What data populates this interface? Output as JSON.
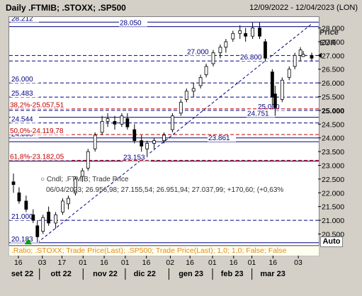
{
  "header": {
    "title": "Daily .FTMIB; .STOXX; .SP500",
    "date_range": "12/09/2022 - 12/04/2023 (LON)"
  },
  "axis_unit": {
    "line1": "Price",
    "line2": "EUR"
  },
  "legend_footer": ".Ratio; .STOXX; Trade Price(Last); .SP500; Trade Price(Last); 1,0; 1,0; False; False",
  "auto_button": "Auto",
  "info_box": {
    "line1": "Cndl; .FTMIB; Trade Price",
    "line2": "06/04/2023; 26.956,98; 27.155,54; 26.951,94; 27.037,99; +170,60; (+0,63%"
  },
  "colors": {
    "candle": "#000000",
    "level_line": "#000080",
    "fib_line": "#c00000",
    "legend_text": "#e38a1c",
    "trend_line": "#000080"
  },
  "chart_data": {
    "type": "candlestick",
    "x_dates": [
      "2022-09-12",
      "2023-04-12"
    ],
    "ylim": [
      20.1,
      28.4
    ],
    "y_ticks": [
      "28.000",
      "27.500",
      "27.000",
      "26.500",
      "26.000",
      "25.500",
      "25.000",
      "24.500",
      "24.000",
      "23.500",
      "23.000",
      "22.500",
      "22.000",
      "21.500",
      "21.000",
      "20.500"
    ],
    "x_day_ticks": [
      "16",
      "03",
      "17",
      "01",
      "16",
      "01",
      "16",
      "02",
      "16",
      "01",
      "16",
      "01",
      "16",
      "03"
    ],
    "x_month_labels": [
      "set 22",
      "ott 22",
      "nov 22",
      "dic 22",
      "gen 23",
      "feb 23",
      "mar 23"
    ],
    "last_price_label": "27.000",
    "highlight_label": "25.000",
    "horizontal_levels": [
      {
        "value": 28.212,
        "label": "28.212",
        "style": "solid"
      },
      {
        "value": 28.05,
        "label": "28.050",
        "style": "solid"
      },
      {
        "value": 27.0,
        "label": "27.000",
        "style": "dashed"
      },
      {
        "value": 26.8,
        "label": "26.800",
        "style": "dashed"
      },
      {
        "value": 26.0,
        "label": "26.000",
        "style": "dashed"
      },
      {
        "value": 25.483,
        "label": "25.483",
        "style": "dashed"
      },
      {
        "value": 25.0,
        "label": "25.000",
        "style": "dashed"
      },
      {
        "value": 24.751,
        "label": "24.751",
        "style": "solid"
      },
      {
        "value": 24.544,
        "label": "24.544",
        "style": "dashed"
      },
      {
        "value": 24.0,
        "label": "24.000",
        "style": "solid"
      },
      {
        "value": 23.861,
        "label": "23.861",
        "style": "solid"
      },
      {
        "value": 23.153,
        "label": "23.153",
        "style": "solid"
      },
      {
        "value": 21.0,
        "label": "21.000",
        "style": "dashed"
      },
      {
        "value": 20.183,
        "label": "20.183",
        "style": "solid"
      }
    ],
    "fibonacci_levels": [
      {
        "value": 25.057,
        "label": "38,2%-25.057,51"
      },
      {
        "value": 24.12,
        "label": "50,0%-24.119,78"
      },
      {
        "value": 23.182,
        "label": "61,8%-23.182,05"
      }
    ],
    "trend_line": {
      "x1": "2022-09-29",
      "y1": 20.183,
      "x2": "2023-04-12",
      "y2": 28.15
    },
    "close_series": [
      {
        "date": "2022-09-12",
        "open": 22.4,
        "high": 22.7,
        "low": 22.0,
        "close": 22.3
      },
      {
        "date": "2022-09-16",
        "open": 22.0,
        "high": 22.2,
        "low": 21.6,
        "close": 21.7
      },
      {
        "date": "2022-09-21",
        "open": 21.7,
        "high": 21.9,
        "low": 21.3,
        "close": 21.4
      },
      {
        "date": "2022-09-26",
        "open": 21.2,
        "high": 21.4,
        "low": 20.9,
        "close": 21.0
      },
      {
        "date": "2022-09-29",
        "open": 20.8,
        "high": 21.0,
        "low": 20.2,
        "close": 20.4
      },
      {
        "date": "2022-10-03",
        "open": 20.6,
        "high": 21.2,
        "low": 20.5,
        "close": 21.1
      },
      {
        "date": "2022-10-07",
        "open": 21.3,
        "high": 21.5,
        "low": 20.8,
        "close": 20.9
      },
      {
        "date": "2022-10-12",
        "open": 20.9,
        "high": 21.3,
        "low": 20.7,
        "close": 21.2
      },
      {
        "date": "2022-10-17",
        "open": 21.3,
        "high": 21.8,
        "low": 21.2,
        "close": 21.7
      },
      {
        "date": "2022-10-21",
        "open": 21.6,
        "high": 21.9,
        "low": 21.4,
        "close": 21.8
      },
      {
        "date": "2022-10-26",
        "open": 22.0,
        "high": 22.6,
        "low": 21.9,
        "close": 22.5
      },
      {
        "date": "2022-10-31",
        "open": 22.6,
        "high": 22.9,
        "low": 22.4,
        "close": 22.8
      },
      {
        "date": "2022-11-04",
        "open": 22.9,
        "high": 23.6,
        "low": 22.8,
        "close": 23.5
      },
      {
        "date": "2022-11-09",
        "open": 23.6,
        "high": 24.2,
        "low": 23.5,
        "close": 24.1
      },
      {
        "date": "2022-11-14",
        "open": 24.2,
        "high": 24.8,
        "low": 24.1,
        "close": 24.6
      },
      {
        "date": "2022-11-18",
        "open": 24.6,
        "high": 24.9,
        "low": 24.4,
        "close": 24.7
      },
      {
        "date": "2022-11-23",
        "open": 24.6,
        "high": 24.8,
        "low": 24.3,
        "close": 24.5
      },
      {
        "date": "2022-11-28",
        "open": 24.5,
        "high": 24.9,
        "low": 24.4,
        "close": 24.8
      },
      {
        "date": "2022-12-02",
        "open": 24.7,
        "high": 24.9,
        "low": 24.3,
        "close": 24.4
      },
      {
        "date": "2022-12-07",
        "open": 24.3,
        "high": 24.5,
        "low": 23.8,
        "close": 23.9
      },
      {
        "date": "2022-12-12",
        "open": 23.9,
        "high": 24.1,
        "low": 23.5,
        "close": 23.7
      },
      {
        "date": "2022-12-16",
        "open": 23.6,
        "high": 23.9,
        "low": 23.3,
        "close": 23.8
      },
      {
        "date": "2022-12-21",
        "open": 23.8,
        "high": 24.0,
        "low": 23.6,
        "close": 23.9
      },
      {
        "date": "2022-12-28",
        "open": 23.9,
        "high": 24.2,
        "low": 23.8,
        "close": 24.1
      },
      {
        "date": "2023-01-03",
        "open": 24.3,
        "high": 24.9,
        "low": 24.2,
        "close": 24.8
      },
      {
        "date": "2023-01-09",
        "open": 24.9,
        "high": 25.4,
        "low": 24.8,
        "close": 25.3
      },
      {
        "date": "2023-01-13",
        "open": 25.4,
        "high": 25.8,
        "low": 25.3,
        "close": 25.7
      },
      {
        "date": "2023-01-18",
        "open": 25.7,
        "high": 26.0,
        "low": 25.5,
        "close": 25.8
      },
      {
        "date": "2023-01-23",
        "open": 25.9,
        "high": 26.3,
        "low": 25.8,
        "close": 26.2
      },
      {
        "date": "2023-01-27",
        "open": 26.3,
        "high": 26.7,
        "low": 26.2,
        "close": 26.6
      },
      {
        "date": "2023-02-01",
        "open": 26.7,
        "high": 27.2,
        "low": 26.6,
        "close": 27.1
      },
      {
        "date": "2023-02-06",
        "open": 27.1,
        "high": 27.4,
        "low": 26.9,
        "close": 27.3
      },
      {
        "date": "2023-02-10",
        "open": 27.3,
        "high": 27.6,
        "low": 27.1,
        "close": 27.5
      },
      {
        "date": "2023-02-15",
        "open": 27.6,
        "high": 27.9,
        "low": 27.5,
        "close": 27.8
      },
      {
        "date": "2023-02-20",
        "open": 27.8,
        "high": 28.1,
        "low": 27.6,
        "close": 27.9
      },
      {
        "date": "2023-02-24",
        "open": 27.8,
        "high": 28.0,
        "low": 27.5,
        "close": 27.7
      },
      {
        "date": "2023-03-01",
        "open": 27.7,
        "high": 28.2,
        "low": 27.6,
        "close": 28.0
      },
      {
        "date": "2023-03-06",
        "open": 28.0,
        "high": 28.2,
        "low": 27.6,
        "close": 27.7
      },
      {
        "date": "2023-03-10",
        "open": 27.5,
        "high": 27.6,
        "low": 26.8,
        "close": 26.9
      },
      {
        "date": "2023-03-15",
        "open": 26.4,
        "high": 26.5,
        "low": 25.2,
        "close": 25.5
      },
      {
        "date": "2023-03-17",
        "open": 25.6,
        "high": 25.9,
        "low": 24.8,
        "close": 25.1
      },
      {
        "date": "2023-03-22",
        "open": 25.4,
        "high": 26.2,
        "low": 25.3,
        "close": 26.1
      },
      {
        "date": "2023-03-27",
        "open": 26.2,
        "high": 26.6,
        "low": 26.1,
        "close": 26.5
      },
      {
        "date": "2023-03-31",
        "open": 26.6,
        "high": 27.1,
        "low": 26.5,
        "close": 27.0
      },
      {
        "date": "2023-04-04",
        "open": 27.0,
        "high": 27.3,
        "low": 26.8,
        "close": 27.2
      },
      {
        "date": "2023-04-06",
        "open": 26.96,
        "high": 27.16,
        "low": 26.95,
        "close": 27.04
      },
      {
        "date": "2023-04-12",
        "open": 27.0,
        "high": 27.1,
        "low": 26.8,
        "close": 26.9
      }
    ]
  }
}
